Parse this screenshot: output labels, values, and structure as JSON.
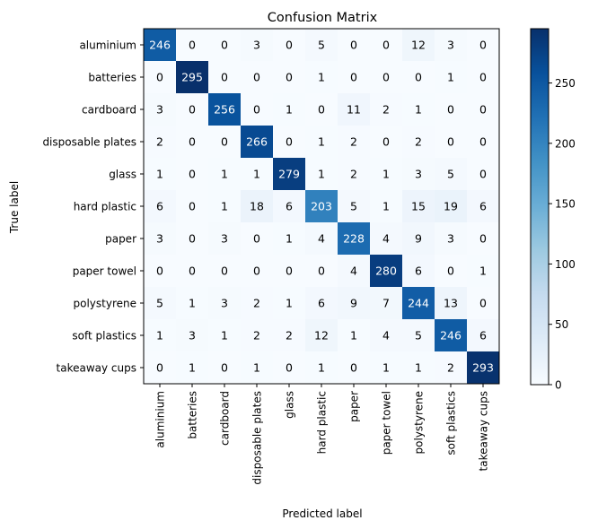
{
  "chart_data": {
    "type": "heatmap",
    "title": "Confusion Matrix",
    "xlabel": "Predicted label",
    "ylabel": "True label",
    "x_categories": [
      "aluminium",
      "batteries",
      "cardboard",
      "disposable plates",
      "glass",
      "hard plastic",
      "paper",
      "paper towel",
      "polystyrene",
      "soft plastics",
      "takeaway cups"
    ],
    "y_categories": [
      "aluminium",
      "batteries",
      "cardboard",
      "disposable plates",
      "glass",
      "hard plastic",
      "paper",
      "paper towel",
      "polystyrene",
      "soft plastics",
      "takeaway cups"
    ],
    "values": [
      [
        246,
        0,
        0,
        3,
        0,
        5,
        0,
        0,
        12,
        3,
        0
      ],
      [
        0,
        295,
        0,
        0,
        0,
        1,
        0,
        0,
        0,
        1,
        0
      ],
      [
        3,
        0,
        256,
        0,
        1,
        0,
        11,
        2,
        1,
        0,
        0
      ],
      [
        2,
        0,
        0,
        266,
        0,
        1,
        2,
        0,
        2,
        0,
        0
      ],
      [
        1,
        0,
        1,
        1,
        279,
        1,
        2,
        1,
        3,
        5,
        0
      ],
      [
        6,
        0,
        1,
        18,
        6,
        203,
        5,
        1,
        15,
        19,
        6
      ],
      [
        3,
        0,
        3,
        0,
        1,
        4,
        228,
        4,
        9,
        3,
        0
      ],
      [
        0,
        0,
        0,
        0,
        0,
        0,
        4,
        280,
        6,
        0,
        1
      ],
      [
        5,
        1,
        3,
        2,
        1,
        6,
        9,
        7,
        244,
        13,
        0
      ],
      [
        1,
        3,
        1,
        2,
        2,
        12,
        1,
        4,
        5,
        246,
        6
      ],
      [
        0,
        1,
        0,
        1,
        0,
        1,
        0,
        1,
        1,
        2,
        293
      ]
    ],
    "colormap": "Blues",
    "color_range": [
      0,
      295
    ],
    "colorbar_ticks": [
      0,
      50,
      100,
      150,
      200,
      250
    ],
    "grid": false
  }
}
